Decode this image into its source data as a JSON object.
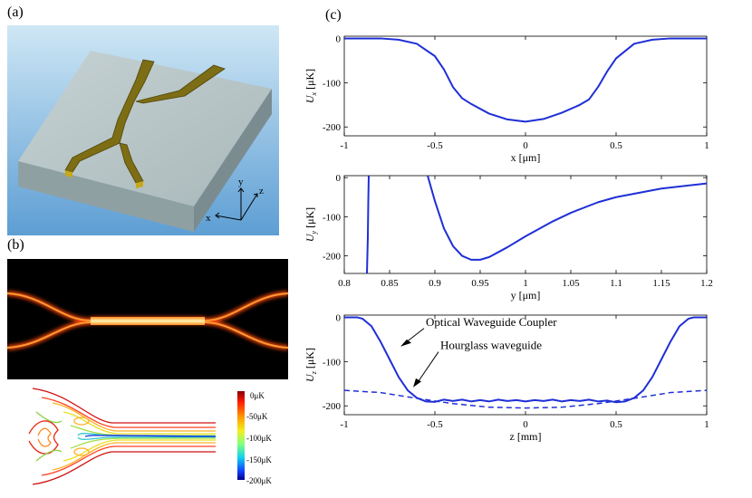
{
  "panels": {
    "a": {
      "label": "(a)",
      "axes": {
        "x": "x",
        "y": "y",
        "z": "z"
      }
    },
    "b": {
      "label": "(b)",
      "colorbar": {
        "ticks": [
          "0μK",
          "-50μK",
          "-100μK",
          "-150μK",
          "-200μK"
        ]
      }
    },
    "c": {
      "label": "(c)"
    }
  },
  "colors": {
    "curve": "#1f2fd6",
    "sky_top": "#c9e4f4",
    "sky_bottom": "#5a9bd2",
    "slab_top": "#b9c7c9",
    "waveguide": "#7a6a12",
    "glow": "#ff6010"
  },
  "chart_data": [
    {
      "id": "ux",
      "type": "line",
      "ylabel_main": "U",
      "ylabel_sub": "x",
      "ylabel_unit": "[μK]",
      "xlabel": "x [μm]",
      "xlim": [
        -1,
        1
      ],
      "ylim": [
        -220,
        5
      ],
      "xticks": [
        -1,
        -0.5,
        0,
        0.5,
        1
      ],
      "xtick_labels": [
        "-1",
        "-0.5",
        "0",
        "0.5",
        "1"
      ],
      "yticks": [
        0,
        -100,
        -200
      ],
      "ytick_labels": [
        "0",
        "-100",
        "-200"
      ],
      "series": [
        {
          "name": "Ux",
          "style": "solid",
          "x": [
            -1,
            -0.8,
            -0.7,
            -0.6,
            -0.5,
            -0.45,
            -0.4,
            -0.35,
            -0.3,
            -0.2,
            -0.1,
            0,
            0.1,
            0.2,
            0.3,
            0.35,
            0.4,
            0.45,
            0.5,
            0.6,
            0.7,
            0.8,
            1
          ],
          "y": [
            0,
            0,
            -3,
            -12,
            -40,
            -70,
            -110,
            -135,
            -148,
            -170,
            -183,
            -188,
            -182,
            -168,
            -150,
            -138,
            -110,
            -75,
            -45,
            -12,
            -3,
            0,
            0
          ]
        }
      ]
    },
    {
      "id": "uy",
      "type": "line",
      "ylabel_main": "U",
      "ylabel_sub": "y",
      "ylabel_unit": "[μK]",
      "xlabel": "y [μm]",
      "xlim": [
        0.8,
        1.2
      ],
      "ylim": [
        -245,
        5
      ],
      "xticks": [
        0.8,
        0.85,
        0.9,
        0.95,
        1,
        1.05,
        1.1,
        1.15,
        1.2
      ],
      "xtick_labels": [
        "0.8",
        "0.85",
        "0.9",
        "0.95",
        "1",
        "1.05",
        "1.1",
        "1.15",
        "1.2"
      ],
      "yticks": [
        0,
        -100,
        -200
      ],
      "ytick_labels": [
        "0",
        "-100",
        "-200"
      ],
      "series": [
        {
          "name": "Uy-left-branch",
          "style": "solid",
          "x": [
            0.825,
            0.826,
            0.8265,
            0.827
          ],
          "y": [
            -245,
            -150,
            -60,
            5
          ]
        },
        {
          "name": "Uy",
          "style": "solid",
          "x": [
            0.892,
            0.9,
            0.91,
            0.92,
            0.93,
            0.94,
            0.95,
            0.96,
            0.98,
            1.0,
            1.03,
            1.05,
            1.08,
            1.1,
            1.15,
            1.2
          ],
          "y": [
            5,
            -60,
            -130,
            -175,
            -200,
            -210,
            -210,
            -203,
            -178,
            -150,
            -112,
            -90,
            -63,
            -50,
            -28,
            -15
          ]
        }
      ]
    },
    {
      "id": "uz",
      "type": "line",
      "ylabel_main": "U",
      "ylabel_sub": "z",
      "ylabel_unit": "[μK]",
      "xlabel": "z [mm]",
      "xlim": [
        -1,
        1
      ],
      "ylim": [
        -220,
        5
      ],
      "xticks": [
        -1,
        -0.5,
        0,
        0.5,
        1
      ],
      "xtick_labels": [
        "-1",
        "-0.5",
        "0",
        "0.5",
        "1"
      ],
      "yticks": [
        0,
        -100,
        -200
      ],
      "ytick_labels": [
        "0",
        "-100",
        "-200"
      ],
      "annotations": [
        "Optical Waveguide Coupler",
        "Hourglass waveguide"
      ],
      "series": [
        {
          "name": "Optical Waveguide Coupler",
          "style": "solid",
          "x": [
            -1,
            -0.93,
            -0.9,
            -0.85,
            -0.8,
            -0.75,
            -0.7,
            -0.65,
            -0.6,
            -0.55,
            -0.5,
            -0.45,
            -0.4,
            -0.35,
            -0.3,
            -0.25,
            -0.2,
            -0.15,
            -0.1,
            -0.05,
            0,
            0.05,
            0.1,
            0.15,
            0.2,
            0.25,
            0.3,
            0.35,
            0.4,
            0.45,
            0.5,
            0.55,
            0.6,
            0.65,
            0.7,
            0.75,
            0.8,
            0.85,
            0.9,
            0.93,
            1
          ],
          "y": [
            0,
            0,
            -3,
            -20,
            -55,
            -95,
            -135,
            -165,
            -182,
            -190,
            -191,
            -186,
            -189,
            -186,
            -190,
            -187,
            -190,
            -186,
            -189,
            -187,
            -190,
            -187,
            -189,
            -186,
            -190,
            -187,
            -189,
            -186,
            -190,
            -188,
            -192,
            -190,
            -182,
            -165,
            -135,
            -95,
            -55,
            -20,
            -3,
            0,
            0
          ]
        },
        {
          "name": "Hourglass waveguide",
          "style": "dashed",
          "x": [
            -1,
            -0.8,
            -0.6,
            -0.4,
            -0.2,
            0,
            0.2,
            0.4,
            0.6,
            0.8,
            1
          ],
          "y": [
            -165,
            -170,
            -183,
            -195,
            -203,
            -205,
            -203,
            -195,
            -183,
            -170,
            -165
          ]
        }
      ]
    }
  ]
}
